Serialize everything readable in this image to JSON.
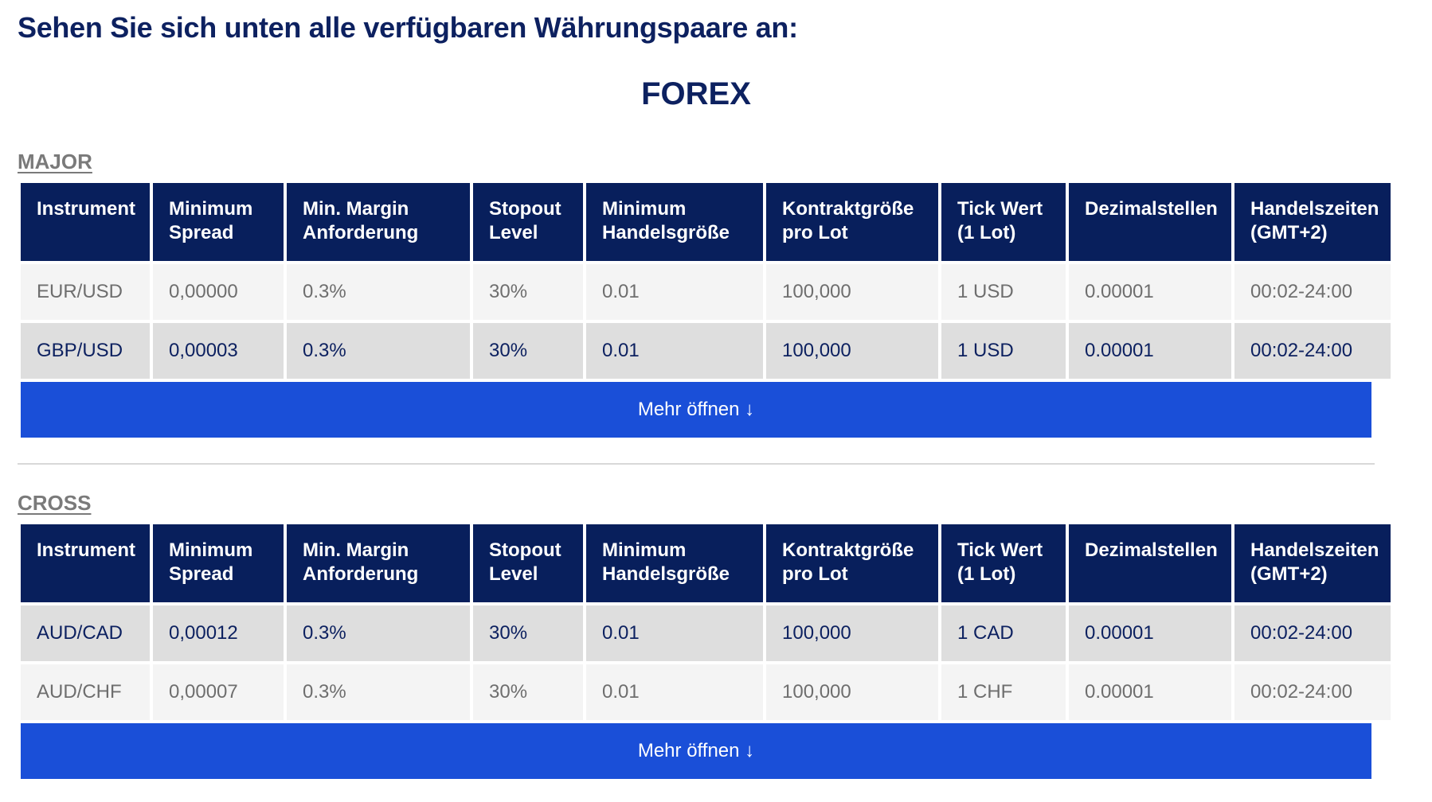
{
  "page": {
    "heading": "Sehen Sie sich unten alle verfügbaren Währungspaare an:",
    "section_title": "FOREX"
  },
  "columns": [
    "Instrument",
    "Minimum Spread",
    "Min. Margin Anforderung",
    "Stopout Level",
    "Minimum Handelsgröße",
    "Kontraktgröße pro Lot",
    "Tick Wert (1 Lot)",
    "Dezimalstellen",
    "Handelszeiten (GMT+2)"
  ],
  "major": {
    "title": "MAJOR",
    "rows": [
      [
        "EUR/USD",
        "0,00000",
        "0.3%",
        "30%",
        "0.01",
        "100,000",
        "1 USD",
        "0.00001",
        "00:02-24:00"
      ],
      [
        "GBP/USD",
        "0,00003",
        "0.3%",
        "30%",
        "0.01",
        "100,000",
        "1 USD",
        "0.00001",
        "00:02-24:00"
      ]
    ],
    "more_label": "Mehr öffnen ↓"
  },
  "cross": {
    "title": "CROSS",
    "rows": [
      [
        "AUD/CAD",
        "0,00012",
        "0.3%",
        "30%",
        "0.01",
        "100,000",
        "1 CAD",
        "0.00001",
        "00:02-24:00"
      ],
      [
        "AUD/CHF",
        "0,00007",
        "0.3%",
        "30%",
        "0.01",
        "100,000",
        "1 CHF",
        "0.00001",
        "00:02-24:00"
      ]
    ],
    "more_label": "Mehr öffnen ↓"
  },
  "colors": {
    "header_bg": "#081f5c",
    "heading_text": "#0d2160",
    "button_bg": "#1a4fd8",
    "row_light": "#f4f4f4",
    "row_dark": "#dedede"
  }
}
